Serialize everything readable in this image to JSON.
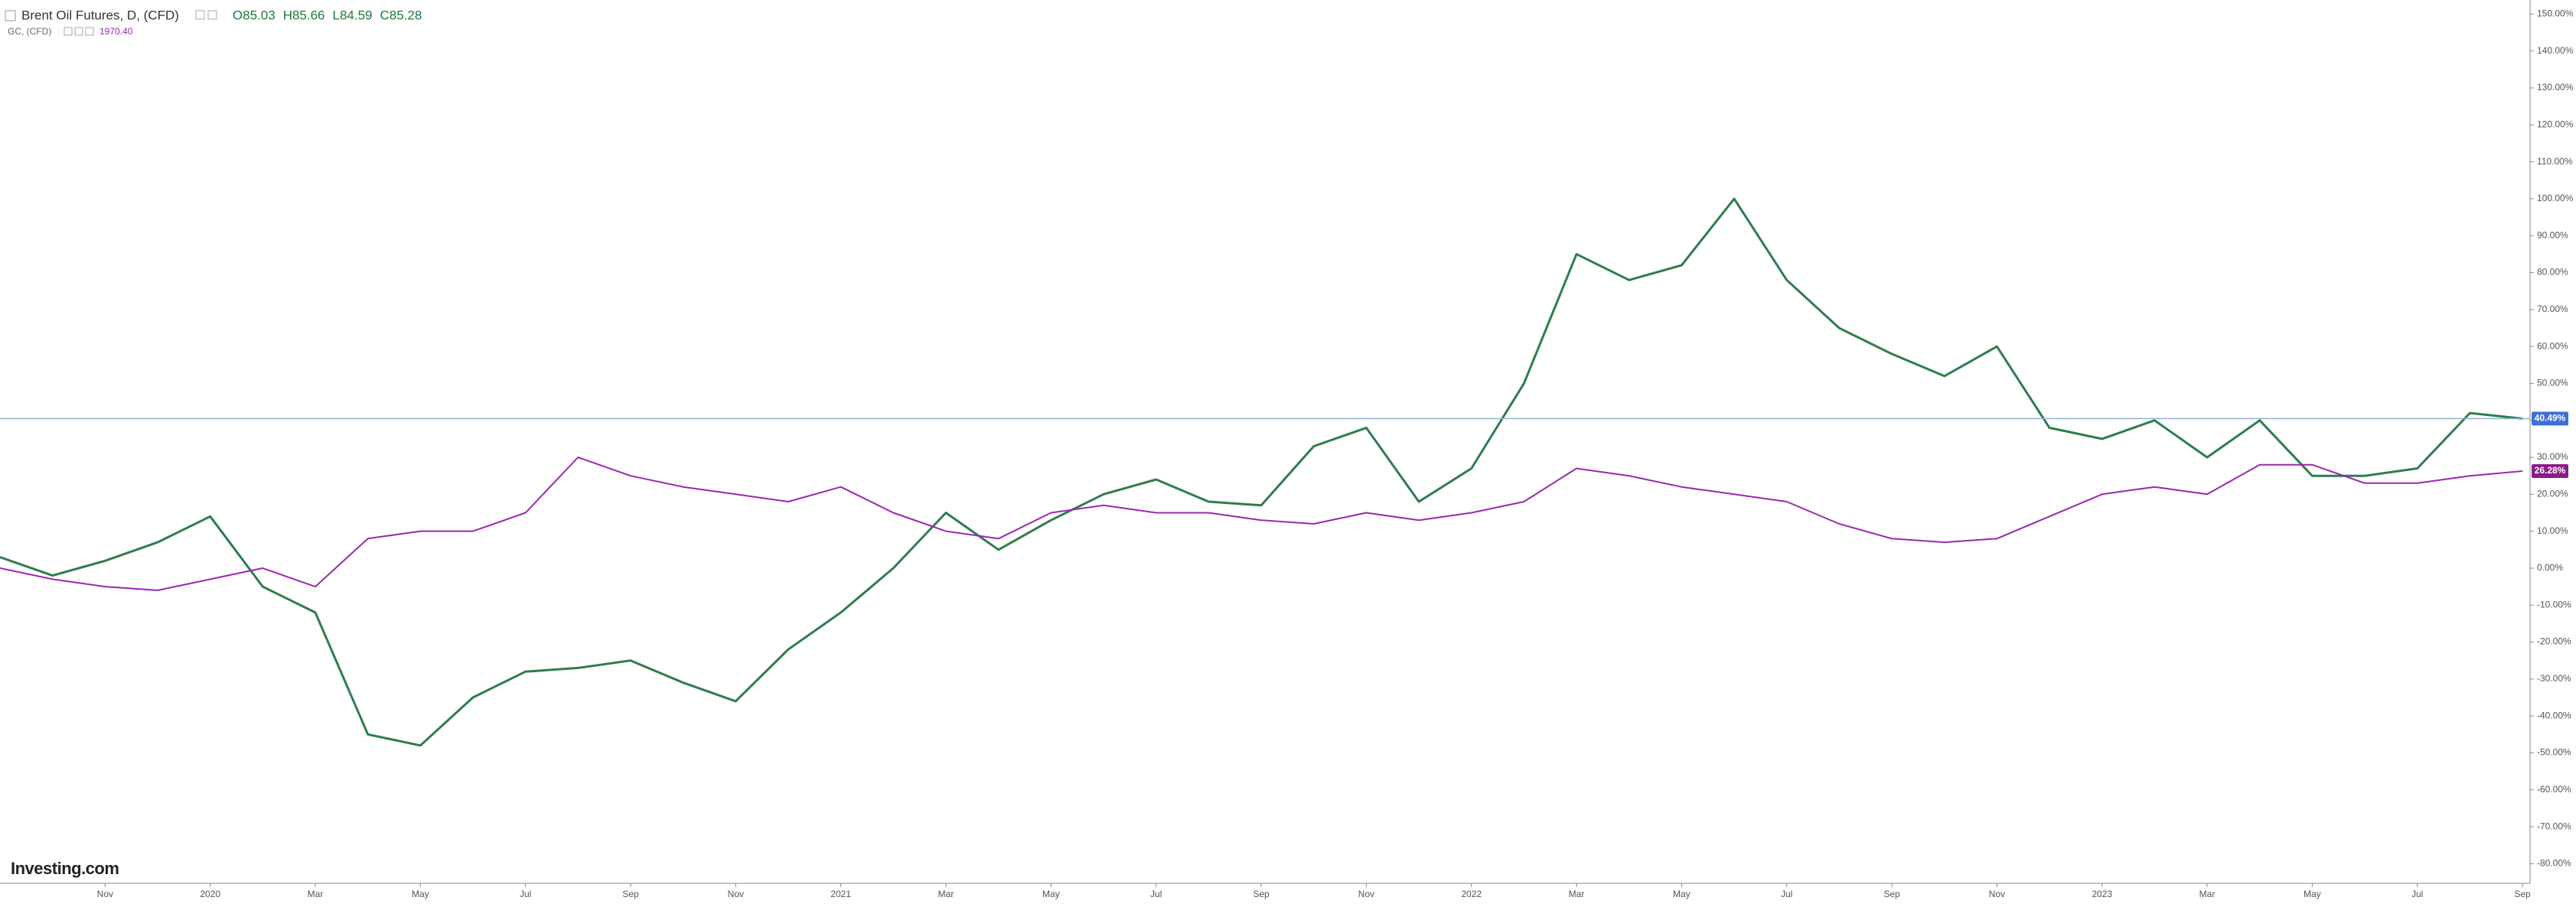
{
  "chart_data": {
    "type": "line",
    "series": [
      {
        "name": "Brent Oil Futures, D, (CFD)",
        "color": "#2e7d4f",
        "last_label": "40.49%",
        "values": [
          3,
          -2,
          2,
          7,
          14,
          -5,
          -12,
          -45,
          -48,
          -35,
          -28,
          -27,
          -25,
          -31,
          -36,
          -22,
          -12,
          0,
          15,
          5,
          13,
          20,
          24,
          18,
          17,
          33,
          38,
          18,
          27,
          50,
          85,
          78,
          82,
          100,
          78,
          65,
          58,
          52,
          60,
          38,
          35,
          40,
          30,
          40,
          25,
          25,
          27,
          42,
          40.49
        ]
      },
      {
        "name": "GC, (CFD)",
        "color": "#9c27b0",
        "last_label": "26.28%",
        "values": [
          0,
          -3,
          -5,
          -6,
          -3,
          0,
          -5,
          8,
          10,
          10,
          15,
          30,
          25,
          22,
          20,
          18,
          22,
          15,
          10,
          8,
          15,
          17,
          15,
          15,
          13,
          12,
          15,
          13,
          15,
          18,
          27,
          25,
          22,
          20,
          18,
          12,
          8,
          7,
          8,
          14,
          20,
          22,
          20,
          28,
          28,
          23,
          23,
          25,
          26.28
        ]
      }
    ],
    "x": [
      "2019-09",
      "2019-10",
      "2019-11",
      "2019-12",
      "2020-01",
      "2020-02",
      "2020-03",
      "2020-04",
      "2020-05",
      "2020-06",
      "2020-07",
      "2020-08",
      "2020-09",
      "2020-10",
      "2020-11",
      "2020-12",
      "2021-01",
      "2021-02",
      "2021-03",
      "2021-04",
      "2021-05",
      "2021-06",
      "2021-07",
      "2021-08",
      "2021-09",
      "2021-10",
      "2021-11",
      "2021-12",
      "2022-01",
      "2022-02",
      "2022-03",
      "2022-04",
      "2022-05",
      "2022-06",
      "2022-07",
      "2022-08",
      "2022-09",
      "2022-10",
      "2022-11",
      "2022-12",
      "2023-01",
      "2023-02",
      "2023-03",
      "2023-04",
      "2023-05",
      "2023-06",
      "2023-07",
      "2023-08",
      "2023-09"
    ],
    "ohlc": [
      "O85.03",
      "H85.66",
      "L84.59",
      "C85.28"
    ],
    "gold_price": "1970.40",
    "logo": "Investing.com",
    "xlim": [
      "2019-09",
      "2023-09"
    ],
    "xticks": [
      {
        "value": "2019-11",
        "label": "Nov"
      },
      {
        "value": "2020-01",
        "label": "2020"
      },
      {
        "value": "2020-03",
        "label": "Mar"
      },
      {
        "value": "2020-05",
        "label": "May"
      },
      {
        "value": "2020-07",
        "label": "Jul"
      },
      {
        "value": "2020-09",
        "label": "Sep"
      },
      {
        "value": "2020-11",
        "label": "Nov"
      },
      {
        "value": "2021-01",
        "label": "2021"
      },
      {
        "value": "2021-03",
        "label": "Mar"
      },
      {
        "value": "2021-05",
        "label": "May"
      },
      {
        "value": "2021-07",
        "label": "Jul"
      },
      {
        "value": "2021-09",
        "label": "Sep"
      },
      {
        "value": "2021-11",
        "label": "Nov"
      },
      {
        "value": "2022-01",
        "label": "2022"
      },
      {
        "value": "2022-03",
        "label": "Mar"
      },
      {
        "value": "2022-05",
        "label": "May"
      },
      {
        "value": "2022-07",
        "label": "Jul"
      },
      {
        "value": "2022-09",
        "label": "Sep"
      },
      {
        "value": "2022-11",
        "label": "Nov"
      },
      {
        "value": "2023-01",
        "label": "2023"
      },
      {
        "value": "2023-03",
        "label": "Mar"
      },
      {
        "value": "2023-05",
        "label": "May"
      },
      {
        "value": "2023-07",
        "label": "Jul"
      },
      {
        "value": "2023-09",
        "label": "Sep"
      }
    ],
    "ylim": [
      -85.3,
      153.8
    ],
    "yticks": [
      {
        "value": 150,
        "label": "150.00%"
      },
      {
        "value": 140,
        "label": "140.00%"
      },
      {
        "value": 130,
        "label": "130.00%"
      },
      {
        "value": 120,
        "label": "120.00%"
      },
      {
        "value": 110,
        "label": "110.00%"
      },
      {
        "value": 100,
        "label": "100.00%"
      },
      {
        "value": 90,
        "label": "90.00%"
      },
      {
        "value": 80,
        "label": "80.00%"
      },
      {
        "value": 70,
        "label": "70.00%"
      },
      {
        "value": 60,
        "label": "60.00%"
      },
      {
        "value": 50,
        "label": "50.00%"
      },
      {
        "value": 40,
        "label": "40.00%"
      },
      {
        "value": 30,
        "label": "30.00%"
      },
      {
        "value": 20,
        "label": "20.00%"
      },
      {
        "value": 10,
        "label": "10.00%"
      },
      {
        "value": 0,
        "label": "0.00%"
      },
      {
        "value": -10,
        "label": "-10.00%"
      },
      {
        "value": -20,
        "label": "-20.00%"
      },
      {
        "value": -30,
        "label": "-30.00%"
      },
      {
        "value": -40,
        "label": "-40.00%"
      },
      {
        "value": -50,
        "label": "-50.00%"
      },
      {
        "value": -60,
        "label": "-60.00%"
      },
      {
        "value": -70,
        "label": "-70.00%"
      },
      {
        "value": -80,
        "label": "-80.00%"
      }
    ],
    "grid": false
  }
}
